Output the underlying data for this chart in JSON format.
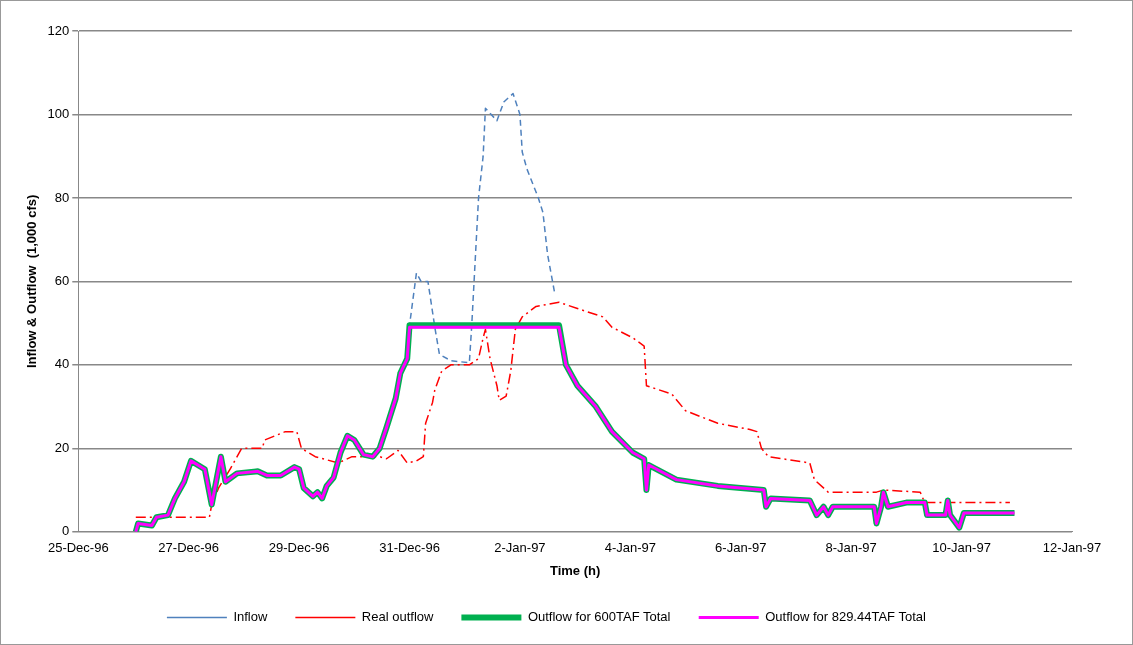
{
  "chart_data": {
    "type": "line",
    "xlabel": "Time (h)",
    "ylabel": "Inflow & Outflow  (1,000 cfs)",
    "xlim": [
      "1996-12-25",
      "1997-01-12"
    ],
    "xticks": [
      {
        "value": "1996-12-25",
        "label": "25-Dec-96"
      },
      {
        "value": "1996-12-27",
        "label": "27-Dec-96"
      },
      {
        "value": "1996-12-29",
        "label": "29-Dec-96"
      },
      {
        "value": "1996-12-31",
        "label": "31-Dec-96"
      },
      {
        "value": "1997-01-02",
        "label": "2-Jan-97"
      },
      {
        "value": "1997-01-04",
        "label": "4-Jan-97"
      },
      {
        "value": "1997-01-06",
        "label": "6-Jan-97"
      },
      {
        "value": "1997-01-08",
        "label": "8-Jan-97"
      },
      {
        "value": "1997-01-10",
        "label": "10-Jan-97"
      },
      {
        "value": "1997-01-12",
        "label": "12-Jan-97"
      }
    ],
    "ylim": [
      0,
      120
    ],
    "yticks": [
      0,
      20,
      40,
      60,
      80,
      100,
      120
    ],
    "grid": "y",
    "legend": "bottom",
    "marker": "none",
    "series": [
      {
        "name": "Inflow",
        "color": "#4f81bd",
        "line_style": "dashed",
        "x": [
          "1996-12-30T23:00",
          "1996-12-31T00:00",
          "1996-12-31T03:00",
          "1996-12-31T05:00",
          "1996-12-31T08:00",
          "1996-12-31T11:00",
          "1996-12-31T13:00",
          "1996-12-31T18:00",
          "1997-01-01T02:00",
          "1997-01-01T03:00",
          "1997-01-01T06:00",
          "1997-01-01T08:00",
          "1997-01-01T09:00",
          "1997-01-01T14:00",
          "1997-01-01T17:00",
          "1997-01-01T21:00",
          "1997-01-02T00:00",
          "1997-01-02T01:00",
          "1997-01-02T03:00",
          "1997-01-02T08:00",
          "1997-01-02T10:00",
          "1997-01-02T12:00",
          "1997-01-02T15:00"
        ],
        "values": [
          41.5,
          49.5,
          62,
          60,
          60,
          49,
          42.5,
          41,
          40.5,
          49,
          80,
          90,
          101.5,
          98.5,
          103,
          105,
          100,
          91,
          87,
          80,
          76.5,
          66.5,
          57.5
        ]
      },
      {
        "name": "Real outflow",
        "color": "#ff0000",
        "line_style": "dashdot",
        "x": [
          "1996-12-26T01:00",
          "1996-12-27T09:00",
          "1996-12-27T10:00",
          "1996-12-27T13:00",
          "1996-12-27T18:00",
          "1996-12-27T23:00",
          "1996-12-28T08:00",
          "1996-12-28T09:00",
          "1996-12-28T18:00",
          "1996-12-28T23:00",
          "1996-12-29T01:00",
          "1996-12-29T07:00",
          "1996-12-29T17:00",
          "1996-12-29T23:00",
          "1996-12-30T11:00",
          "1996-12-30T14:00",
          "1996-12-30T19:00",
          "1996-12-30T23:00",
          "1996-12-31T03:00",
          "1996-12-31T06:00",
          "1996-12-31T07:00",
          "1996-12-31T10:00",
          "1996-12-31T11:00",
          "1996-12-31T14:00",
          "1996-12-31T18:00",
          "1997-01-01T02:00",
          "1997-01-01T06:00",
          "1997-01-01T08:00",
          "1997-01-01T09:00",
          "1997-01-01T11:00",
          "1997-01-01T14:00",
          "1997-01-01T15:00",
          "1997-01-01T18:00",
          "1997-01-01T20:00",
          "1997-01-01T22:00",
          "1997-01-02T01:00",
          "1997-01-02T07:00",
          "1997-01-02T17:00",
          "1997-01-03T01:00",
          "1997-01-03T12:00",
          "1997-01-03T16:00",
          "1997-01-04T01:00",
          "1997-01-04T06:00",
          "1997-01-04T07:00",
          "1997-01-04T18:00",
          "1997-01-05T00:00",
          "1997-01-05T14:00",
          "1997-01-06T04:00",
          "1997-01-06T07:00",
          "1997-01-06T09:00",
          "1997-01-06T12:00",
          "1997-01-07T06:00",
          "1997-01-07T08:00",
          "1997-01-07T14:00",
          "1997-01-08T11:00",
          "1997-01-08T14:00",
          "1997-01-09T06:00",
          "1997-01-09T08:00",
          "1997-01-10T09:00",
          "1997-01-10T21:00"
        ],
        "values": [
          3.5,
          3.5,
          6.5,
          10.5,
          15,
          20,
          20,
          22,
          24,
          24,
          20,
          18,
          16.5,
          18,
          18,
          17.5,
          19.5,
          16.5,
          17,
          18,
          26,
          31,
          34,
          38.5,
          40,
          40,
          41.5,
          46.5,
          48.5,
          41.5,
          35,
          31.5,
          32.5,
          38.5,
          48.5,
          51.5,
          54,
          55,
          53.5,
          51.5,
          49,
          46.5,
          44.5,
          35,
          33,
          29,
          26,
          24.5,
          24,
          20,
          18,
          16.5,
          12.5,
          9.5,
          9.5,
          10,
          9.5,
          7,
          7,
          7
        ]
      },
      {
        "name": "Outflow for 600TAF Total",
        "color": "#00b050",
        "line_style": "solid",
        "x": [
          "1996-12-26T01:00",
          "1996-12-26T02:00",
          "1996-12-26T08:00",
          "1996-12-26T10:00",
          "1996-12-26T15:00",
          "1996-12-26T18:00",
          "1996-12-26T22:00",
          "1996-12-27T01:00",
          "1996-12-27T07:00",
          "1996-12-27T10:00",
          "1996-12-27T14:00",
          "1996-12-27T16:00",
          "1996-12-27T21:00",
          "1996-12-28T06:00",
          "1996-12-28T10:00",
          "1996-12-28T16:00",
          "1996-12-28T22:00",
          "1996-12-29T00:00",
          "1996-12-29T02:00",
          "1996-12-29T06:00",
          "1996-12-29T08:00",
          "1996-12-29T10:00",
          "1996-12-29T12:00",
          "1996-12-29T15:00",
          "1996-12-29T18:00",
          "1996-12-29T21:00",
          "1996-12-30T00:00",
          "1996-12-30T04:00",
          "1996-12-30T08:00",
          "1996-12-30T11:00",
          "1996-12-30T14:00",
          "1996-12-30T18:00",
          "1996-12-30T20:00",
          "1996-12-30T23:00",
          "1996-12-31T00:00",
          "1997-01-02T17:00",
          "1997-01-02T20:00",
          "1997-01-03T01:00",
          "1997-01-03T09:00",
          "1997-01-03T16:00",
          "1997-01-04T01:00",
          "1997-01-04T06:00",
          "1997-01-04T07:00",
          "1997-01-04T08:00",
          "1997-01-04T20:00",
          "1997-01-05T14:00",
          "1997-01-06T10:00",
          "1997-01-06T11:00",
          "1997-01-06T13:00",
          "1997-01-07T06:00",
          "1997-01-07T09:00",
          "1997-01-07T12:00",
          "1997-01-07T14:00",
          "1997-01-07T16:00",
          "1997-01-08T10:00",
          "1997-01-08T11:00",
          "1997-01-08T13:00",
          "1997-01-08T14:00",
          "1997-01-08T16:00",
          "1997-01-09T00:00",
          "1997-01-09T08:00",
          "1997-01-09T09:00",
          "1997-01-09T17:00",
          "1997-01-09T18:00",
          "1997-01-09T19:00",
          "1997-01-09T23:00",
          "1997-01-10T01:00",
          "1997-01-10T23:00"
        ],
        "values": [
          0,
          2,
          1.5,
          3.5,
          4,
          8,
          12,
          17,
          15,
          6.5,
          18,
          12,
          14,
          14.5,
          13.5,
          13.5,
          15.5,
          15,
          10.5,
          8.5,
          9.5,
          8,
          11,
          13,
          19,
          23,
          22,
          18.5,
          18,
          20,
          25,
          32,
          38,
          41.5,
          49.5,
          49.5,
          40,
          35,
          30,
          24,
          19,
          17.5,
          10,
          16,
          12.5,
          11,
          10,
          6,
          8,
          7.5,
          4,
          6,
          4,
          6,
          6,
          2,
          6,
          9.5,
          6,
          7,
          7,
          4,
          4,
          7.5,
          4,
          1,
          4.5,
          4.5
        ]
      },
      {
        "name": "Outflow for 829.44TAF Total",
        "color": "#ff00ff",
        "line_style": "solid",
        "x": [
          "1996-12-26T01:00",
          "1996-12-26T02:00",
          "1996-12-26T08:00",
          "1996-12-26T10:00",
          "1996-12-26T15:00",
          "1996-12-26T18:00",
          "1996-12-26T22:00",
          "1996-12-27T01:00",
          "1996-12-27T07:00",
          "1996-12-27T10:00",
          "1996-12-27T14:00",
          "1996-12-27T16:00",
          "1996-12-27T21:00",
          "1996-12-28T06:00",
          "1996-12-28T10:00",
          "1996-12-28T16:00",
          "1996-12-28T22:00",
          "1996-12-29T00:00",
          "1996-12-29T02:00",
          "1996-12-29T06:00",
          "1996-12-29T08:00",
          "1996-12-29T10:00",
          "1996-12-29T12:00",
          "1996-12-29T15:00",
          "1996-12-29T18:00",
          "1996-12-29T21:00",
          "1996-12-30T00:00",
          "1996-12-30T04:00",
          "1996-12-30T08:00",
          "1996-12-30T11:00",
          "1996-12-30T14:00",
          "1996-12-30T18:00",
          "1996-12-30T20:00",
          "1996-12-30T23:00",
          "1996-12-31T00:00",
          "1997-01-02T17:00",
          "1997-01-02T20:00",
          "1997-01-03T01:00",
          "1997-01-03T09:00",
          "1997-01-03T16:00",
          "1997-01-04T01:00",
          "1997-01-04T06:00",
          "1997-01-04T07:00",
          "1997-01-04T08:00",
          "1997-01-04T20:00",
          "1997-01-05T14:00",
          "1997-01-06T10:00",
          "1997-01-06T11:00",
          "1997-01-06T13:00",
          "1997-01-07T06:00",
          "1997-01-07T09:00",
          "1997-01-07T12:00",
          "1997-01-07T14:00",
          "1997-01-07T16:00",
          "1997-01-08T10:00",
          "1997-01-08T11:00",
          "1997-01-08T13:00",
          "1997-01-08T14:00",
          "1997-01-08T16:00",
          "1997-01-09T00:00",
          "1997-01-09T08:00",
          "1997-01-09T09:00",
          "1997-01-09T17:00",
          "1997-01-09T18:00",
          "1997-01-09T19:00",
          "1997-01-09T23:00",
          "1997-01-10T01:00",
          "1997-01-10T23:00"
        ],
        "values": [
          0,
          2,
          1.5,
          3.5,
          4,
          8,
          12,
          17,
          15,
          6.5,
          18,
          12,
          14,
          14.5,
          13.5,
          13.5,
          15.5,
          15,
          10.5,
          8.5,
          9.5,
          8,
          11,
          13,
          19,
          23,
          22,
          18.5,
          18,
          20,
          25,
          32,
          38,
          41.5,
          49,
          49,
          40,
          35,
          30,
          24,
          19,
          17.5,
          10,
          16,
          12.5,
          11,
          10,
          6,
          8,
          7.5,
          4,
          6,
          4,
          6,
          6,
          2,
          6,
          9.5,
          6,
          7,
          7,
          4,
          4,
          7.5,
          4,
          1,
          4.5,
          4.5
        ]
      }
    ]
  }
}
